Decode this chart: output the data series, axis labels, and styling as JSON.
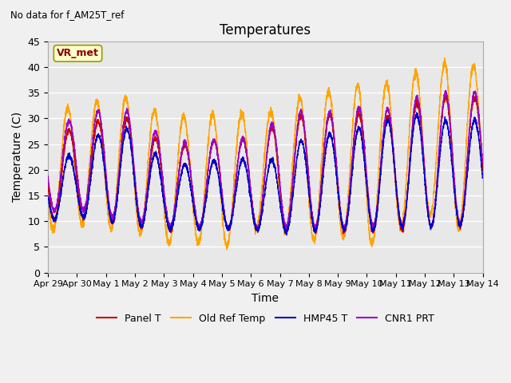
{
  "title": "Temperatures",
  "xlabel": "Time",
  "ylabel": "Temperature (C)",
  "note": "No data for f_AM25T_ref",
  "legend_label": "VR_met",
  "ylim": [
    0,
    45
  ],
  "yticks": [
    0,
    5,
    10,
    15,
    20,
    25,
    30,
    35,
    40,
    45
  ],
  "xtick_labels": [
    "Apr 29",
    "Apr 30",
    "May 1",
    "May 2",
    "May 3",
    "May 4",
    "May 5",
    "May 6",
    "May 7",
    "May 8",
    "May 9",
    "May 10",
    "May 11",
    "May 12",
    "May 13",
    "May 14"
  ],
  "series": {
    "Panel T": {
      "color": "#cc0000",
      "lw": 1.0
    },
    "Old Ref Temp": {
      "color": "#ffa500",
      "lw": 1.0
    },
    "HMP45 T": {
      "color": "#0000cc",
      "lw": 1.0
    },
    "CNR1 PRT": {
      "color": "#9900cc",
      "lw": 1.0
    }
  },
  "background_color": "#e8e8e8",
  "fig_bg": "#f0f0f0",
  "grid_color": "#ffffff",
  "n_days": 15,
  "points_per_day": 288,
  "vr_met_color": "#8b0000",
  "vr_met_bg": "#ffffcc",
  "vr_met_edge": "#999900"
}
